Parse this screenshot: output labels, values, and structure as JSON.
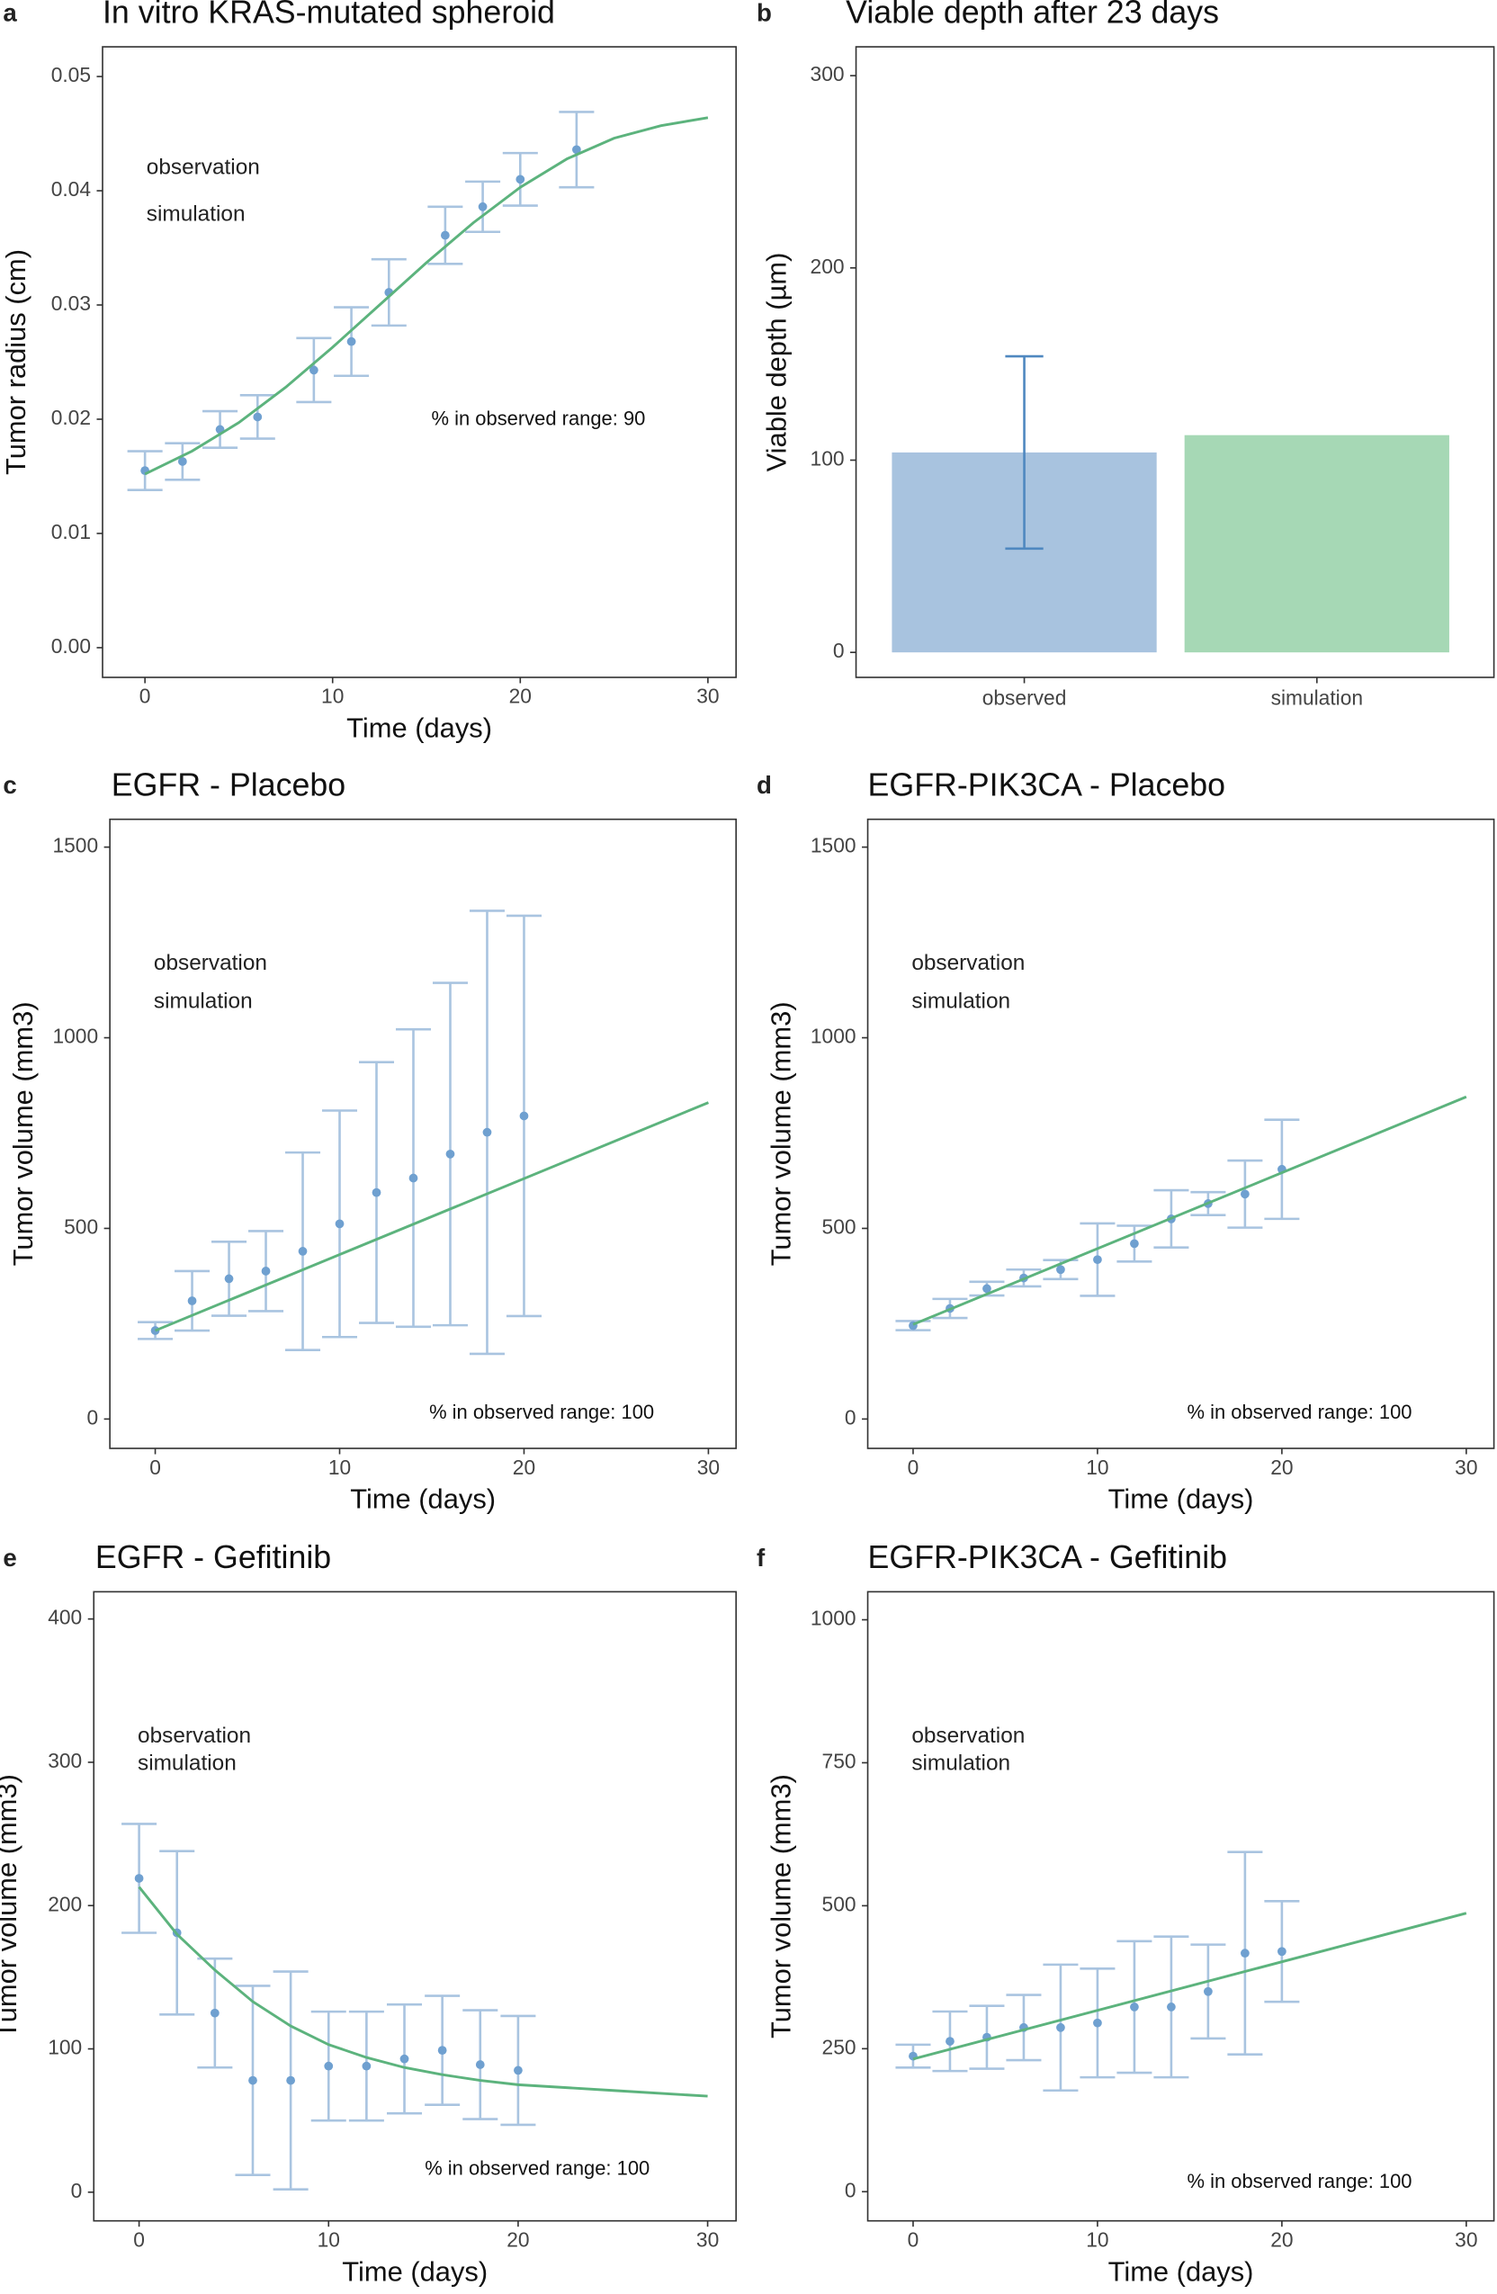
{
  "chart_data": [
    {
      "type": "line",
      "label": "a",
      "title": "In vitro KRAS-mutated spheroid",
      "xlabel": "Time (days)",
      "ylabel": "Tumor radius (cm)",
      "annotation": "% in observed range: 90",
      "xlim": [
        -2.26,
        31.5
      ],
      "ylim": [
        -0.0026,
        0.0526
      ],
      "xticks": [
        0,
        10,
        20,
        30
      ],
      "yticks": [
        {
          "value": 0,
          "label": "0.00"
        },
        0.01,
        0.02,
        0.03,
        0.04,
        0.05
      ],
      "series": [
        {
          "name": "observation",
          "color": "#6fa0d0",
          "error_color": "#a9c4e0",
          "x": [
            0,
            2,
            4,
            6,
            9,
            11,
            13,
            16,
            18,
            20,
            23
          ],
          "values": [
            0.0155,
            0.0163,
            0.0191,
            0.0202,
            0.0243,
            0.0268,
            0.0311,
            0.0361,
            0.0386,
            0.041,
            0.0436
          ],
          "errors": [
            0.0017,
            0.0016,
            0.0016,
            0.0019,
            0.0028,
            0.003,
            0.0029,
            0.0025,
            0.0022,
            0.0023,
            0.0033
          ]
        },
        {
          "name": "simulation",
          "color": "#5cb37d",
          "x": [
            0,
            2.5,
            5,
            7.5,
            10,
            12.5,
            15,
            17.5,
            20,
            22.5,
            25,
            27.5,
            30
          ],
          "values": [
            0.0152,
            0.0172,
            0.0197,
            0.0228,
            0.0263,
            0.03,
            0.0337,
            0.0372,
            0.0403,
            0.0428,
            0.0446,
            0.0457,
            0.0464
          ]
        }
      ]
    },
    {
      "type": "bar",
      "label": "b",
      "title": "Viable depth after 23 days",
      "ylabel": "Viable depth (µm)",
      "categories": [
        "observed",
        "simulation"
      ],
      "values": [
        104,
        113
      ],
      "errors": [
        50,
        null
      ],
      "colors": [
        "#a8c3df",
        "#a6d8b5"
      ],
      "error_color": "#4f88c0",
      "ylim": [
        -13,
        315
      ],
      "yticks": [
        0,
        100,
        200,
        300
      ]
    },
    {
      "type": "line",
      "label": "c",
      "title": "EGFR - Placebo",
      "xlabel": "Time (days)",
      "ylabel": "Tumor volume (mm3)",
      "annotation": "% in observed range: 100",
      "xlim": [
        -2.46,
        31.5
      ],
      "ylim": [
        -77,
        1573
      ],
      "xticks": [
        0,
        10,
        20,
        30
      ],
      "yticks": [
        0,
        500,
        1000,
        1500
      ],
      "series": [
        {
          "name": "observation",
          "color": "#6fa0d0",
          "error_color": "#a9c4e0",
          "x": [
            0,
            2,
            4,
            6,
            8,
            10,
            12,
            14,
            16,
            18,
            20
          ],
          "values": [
            232,
            310,
            368,
            388,
            440,
            512,
            594,
            632,
            695,
            752,
            795
          ],
          "errors": [
            22,
            78,
            97,
            105,
            259,
            297,
            342,
            390,
            449,
            581,
            525
          ]
        },
        {
          "name": "simulation",
          "color": "#5cb37d",
          "x": [
            0,
            30
          ],
          "values": [
            232,
            830
          ]
        }
      ]
    },
    {
      "type": "line",
      "label": "d",
      "title": "EGFR-PIK3CA - Placebo",
      "xlabel": "Time (days)",
      "ylabel": "Tumor volume (mm3)",
      "annotation": "% in observed range: 100",
      "xlim": [
        -2.46,
        31.5
      ],
      "ylim": [
        -77,
        1573
      ],
      "xticks": [
        0,
        10,
        20,
        30
      ],
      "yticks": [
        0,
        500,
        1000,
        1500
      ],
      "series": [
        {
          "name": "observation",
          "color": "#6fa0d0",
          "error_color": "#a9c4e0",
          "x": [
            0,
            2,
            4,
            6,
            8,
            10,
            12,
            14,
            16,
            18,
            20
          ],
          "values": [
            245,
            290,
            342,
            370,
            392,
            418,
            460,
            525,
            565,
            590,
            655
          ],
          "errors": [
            12,
            25,
            18,
            22,
            25,
            95,
            47,
            75,
            30,
            88,
            130
          ]
        },
        {
          "name": "simulation",
          "color": "#5cb37d",
          "x": [
            0,
            30
          ],
          "values": [
            248,
            845
          ]
        }
      ]
    },
    {
      "type": "line",
      "label": "e",
      "title": "EGFR - Gefitinib",
      "xlabel": "Time (days)",
      "ylabel": "Tumor volume (mm3)",
      "annotation": "% in observed range: 100",
      "xlim": [
        -2.39,
        31.5
      ],
      "ylim": [
        -20,
        419
      ],
      "xticks": [
        0,
        10,
        20,
        30
      ],
      "yticks": [
        0,
        100,
        200,
        300,
        400
      ],
      "series": [
        {
          "name": "observation",
          "color": "#6fa0d0",
          "error_color": "#a9c4e0",
          "x": [
            0,
            2,
            4,
            6,
            8,
            10,
            12,
            14,
            16,
            18,
            20
          ],
          "values": [
            219,
            181,
            125,
            78,
            78,
            88,
            88,
            93,
            99,
            89,
            85
          ],
          "errors": [
            38,
            57,
            38,
            66,
            76,
            38,
            38,
            38,
            38,
            38,
            38
          ]
        },
        {
          "name": "simulation",
          "color": "#5cb37d",
          "x": [
            0,
            2,
            4,
            6,
            8,
            10,
            12,
            14,
            16,
            18,
            20,
            25,
            30
          ],
          "values": [
            213,
            180,
            155,
            133,
            116,
            103,
            94,
            87,
            82,
            78,
            75,
            71,
            67
          ]
        }
      ]
    },
    {
      "type": "line",
      "label": "f",
      "title": "EGFR-PIK3CA - Gefitinib",
      "xlabel": "Time (days)",
      "ylabel": "Tumor volume (mm3)",
      "annotation": "% in observed range: 100",
      "xlim": [
        -2.46,
        31.5
      ],
      "ylim": [
        -51,
        1049
      ],
      "xticks": [
        0,
        10,
        20,
        30
      ],
      "yticks": [
        0,
        250,
        500,
        750,
        1000
      ],
      "series": [
        {
          "name": "observation",
          "color": "#6fa0d0",
          "error_color": "#a9c4e0",
          "x": [
            0,
            2,
            4,
            6,
            8,
            10,
            12,
            14,
            16,
            18,
            20
          ],
          "values": [
            237,
            263,
            270,
            287,
            287,
            295,
            323,
            323,
            350,
            417,
            420
          ],
          "errors": [
            20,
            52,
            55,
            57,
            110,
            95,
            115,
            123,
            82,
            177,
            88
          ]
        },
        {
          "name": "simulation",
          "color": "#5cb37d",
          "x": [
            0,
            30
          ],
          "values": [
            232,
            487
          ]
        }
      ]
    }
  ]
}
